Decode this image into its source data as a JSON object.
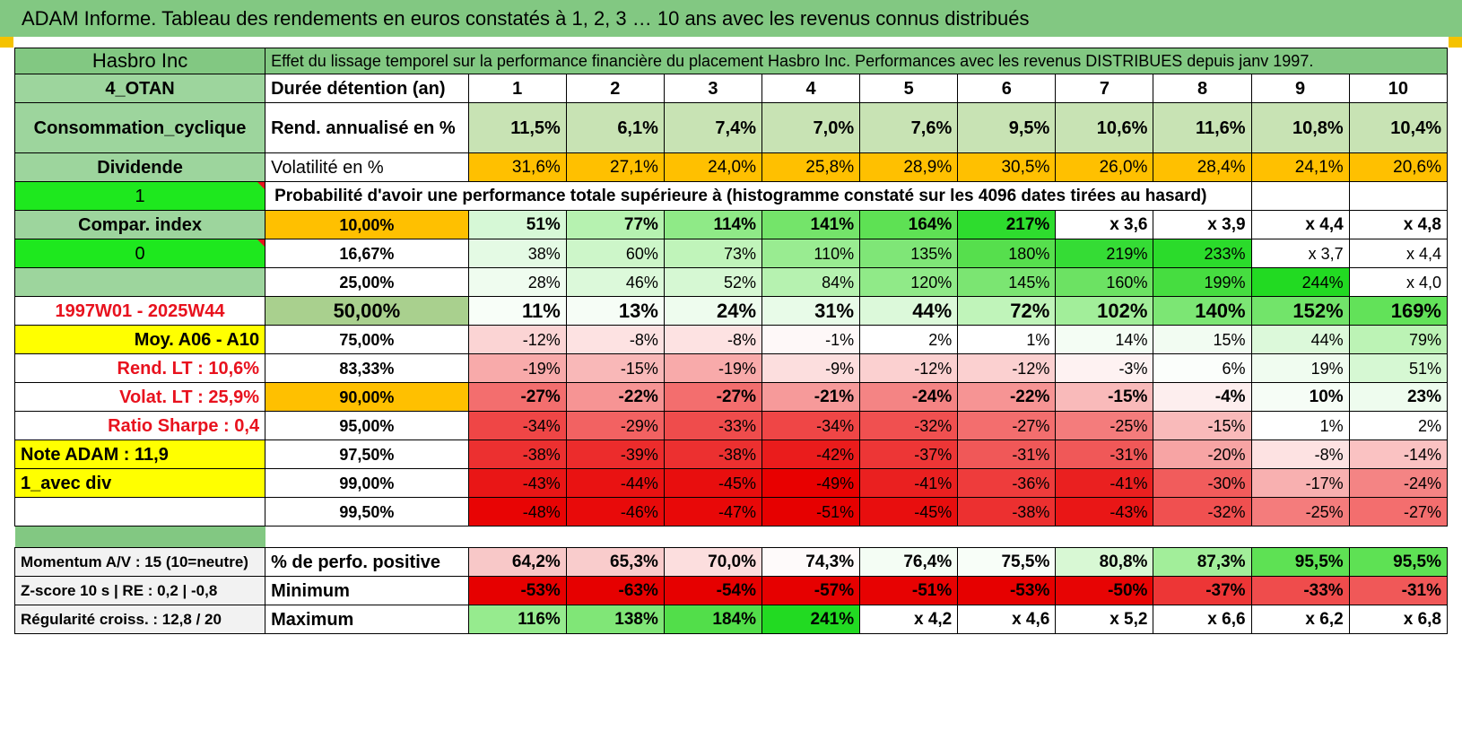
{
  "title": "ADAM Informe. Tableau des rendements en euros constatés à 1, 2, 3 … 10 ans avec les revenus connus distribués",
  "header": {
    "name": "Hasbro Inc",
    "description": "Effet du lissage temporel sur la performance financière du placement Hasbro Inc. Performances avec les revenus DISTRIBUES depuis janv 1997."
  },
  "rows": [
    {
      "side": {
        "text": "4_OTAN",
        "bg": "#9dd59d",
        "color": "#000",
        "align": "c",
        "bold": true
      },
      "label": {
        "text": "Durée détention (an)",
        "bg": "#ffffff",
        "align": "l",
        "bold": true
      },
      "cells": [
        {
          "v": "1",
          "bg": "#ffffff"
        },
        {
          "v": "2",
          "bg": "#ffffff"
        },
        {
          "v": "3",
          "bg": "#ffffff"
        },
        {
          "v": "4",
          "bg": "#ffffff"
        },
        {
          "v": "5",
          "bg": "#ffffff"
        },
        {
          "v": "6",
          "bg": "#ffffff"
        },
        {
          "v": "7",
          "bg": "#ffffff"
        },
        {
          "v": "8",
          "bg": "#ffffff"
        },
        {
          "v": "9",
          "bg": "#ffffff"
        },
        {
          "v": "10",
          "bg": "#ffffff"
        }
      ],
      "align": "c",
      "bold": true,
      "h": 32,
      "size": 20
    },
    {
      "side": {
        "text": "Consommation_cyclique",
        "bg": "#9dd59d",
        "color": "#000",
        "align": "c",
        "bold": true
      },
      "label": {
        "text": "Rend. annualisé en %",
        "bg": "#ffffff",
        "align": "l",
        "bold": true
      },
      "cells": [
        {
          "v": "11,5%",
          "bg": "#c8e3b4"
        },
        {
          "v": "6,1%",
          "bg": "#c8e3b4"
        },
        {
          "v": "7,4%",
          "bg": "#c8e3b4"
        },
        {
          "v": "7,0%",
          "bg": "#c8e3b4"
        },
        {
          "v": "7,6%",
          "bg": "#c8e3b4"
        },
        {
          "v": "9,5%",
          "bg": "#c8e3b4"
        },
        {
          "v": "10,6%",
          "bg": "#c8e3b4"
        },
        {
          "v": "11,6%",
          "bg": "#c8e3b4"
        },
        {
          "v": "10,8%",
          "bg": "#c8e3b4"
        },
        {
          "v": "10,4%",
          "bg": "#c8e3b4"
        }
      ],
      "align": "n",
      "bold": true,
      "h": 56,
      "size": 20
    },
    {
      "side": {
        "text": "Dividende",
        "bg": "#9dd59d",
        "color": "#000",
        "align": "c",
        "bold": true
      },
      "label": {
        "text": "Volatilité en %",
        "bg": "#ffffff",
        "align": "l",
        "bold": false
      },
      "cells": [
        {
          "v": "31,6%",
          "bg": "#ffc000"
        },
        {
          "v": "27,1%",
          "bg": "#ffc000"
        },
        {
          "v": "24,0%",
          "bg": "#ffc000"
        },
        {
          "v": "25,8%",
          "bg": "#ffc000"
        },
        {
          "v": "28,9%",
          "bg": "#ffc000"
        },
        {
          "v": "30,5%",
          "bg": "#ffc000"
        },
        {
          "v": "26,0%",
          "bg": "#ffc000"
        },
        {
          "v": "28,4%",
          "bg": "#ffc000"
        },
        {
          "v": "24,1%",
          "bg": "#ffc000"
        },
        {
          "v": "20,6%",
          "bg": "#ffc000"
        }
      ],
      "align": "n",
      "bold": false,
      "h": 32,
      "size": 19
    },
    {
      "type": "prob",
      "side": {
        "text": "1",
        "bg": "#1ee81e",
        "color": "#000",
        "align": "c",
        "bold": false,
        "tri": true
      },
      "text": "Probabilité d'avoir une performance totale supérieure à (histogramme constaté sur les 4096 dates tirées au hasard)",
      "h": 32
    },
    {
      "side": {
        "text": "Compar. index",
        "bg": "#9dd59d",
        "color": "#000",
        "align": "c",
        "bold": true
      },
      "label": {
        "text": "10,00%",
        "bg": "#ffc000",
        "align": "c",
        "bold": true
      },
      "cells": [
        {
          "v": "51%",
          "bg": "#d6f8d6"
        },
        {
          "v": "77%",
          "bg": "#b6f2b0"
        },
        {
          "v": "114%",
          "bg": "#8fea87"
        },
        {
          "v": "141%",
          "bg": "#74e46a"
        },
        {
          "v": "164%",
          "bg": "#5ee154"
        },
        {
          "v": "217%",
          "bg": "#2edc2e"
        },
        {
          "v": "x 3,6",
          "bg": "#ffffff"
        },
        {
          "v": "x 3,9",
          "bg": "#ffffff"
        },
        {
          "v": "x 4,4",
          "bg": "#ffffff"
        },
        {
          "v": "x 4,8",
          "bg": "#ffffff"
        }
      ],
      "align": "n",
      "bold": true,
      "h": 32,
      "size": 19
    },
    {
      "side": {
        "text": "0",
        "bg": "#1ee81e",
        "color": "#000",
        "align": "c",
        "bold": false,
        "tri": true
      },
      "label": {
        "text": "16,67%",
        "bg": "#ffffff",
        "align": "c",
        "bold": true
      },
      "cells": [
        {
          "v": "38%",
          "bg": "#e4fae4"
        },
        {
          "v": "60%",
          "bg": "#cdf6c9"
        },
        {
          "v": "73%",
          "bg": "#c0f4ba"
        },
        {
          "v": "110%",
          "bg": "#99ec91"
        },
        {
          "v": "135%",
          "bg": "#7fe677"
        },
        {
          "v": "180%",
          "bg": "#56df4d"
        },
        {
          "v": "219%",
          "bg": "#35dc35"
        },
        {
          "v": "233%",
          "bg": "#2bdb2b"
        },
        {
          "v": "x 3,7",
          "bg": "#ffffff"
        },
        {
          "v": "x 4,4",
          "bg": "#ffffff"
        }
      ],
      "align": "n",
      "bold": false,
      "h": 32,
      "size": 18
    },
    {
      "side": {
        "text": "",
        "bg": "#9dd59d",
        "color": "#000",
        "align": "c",
        "bold": false
      },
      "label": {
        "text": "25,00%",
        "bg": "#ffffff",
        "align": "c",
        "bold": true
      },
      "cells": [
        {
          "v": "28%",
          "bg": "#effcef"
        },
        {
          "v": "46%",
          "bg": "#dcf9da"
        },
        {
          "v": "52%",
          "bg": "#d6f8d3"
        },
        {
          "v": "84%",
          "bg": "#b6f2b0"
        },
        {
          "v": "120%",
          "bg": "#90ea88"
        },
        {
          "v": "145%",
          "bg": "#7be572"
        },
        {
          "v": "160%",
          "bg": "#6ce263"
        },
        {
          "v": "199%",
          "bg": "#46dd40"
        },
        {
          "v": "244%",
          "bg": "#22da22"
        },
        {
          "v": "x 4,0",
          "bg": "#ffffff"
        }
      ],
      "align": "n",
      "bold": false,
      "h": 32,
      "size": 18
    },
    {
      "side": {
        "text": "1997W01 - 2025W44",
        "bg": "#ffffff",
        "color": "#e8121e",
        "align": "c",
        "bold": true
      },
      "label": {
        "text": "50,00%",
        "bg": "#a9d08e",
        "align": "c",
        "bold": true,
        "big": true
      },
      "cells": [
        {
          "v": "11%",
          "bg": "#f8fef8"
        },
        {
          "v": "13%",
          "bg": "#f6fdf6"
        },
        {
          "v": "24%",
          "bg": "#eefcee"
        },
        {
          "v": "31%",
          "bg": "#e8fbe8"
        },
        {
          "v": "44%",
          "bg": "#dcf9da"
        },
        {
          "v": "72%",
          "bg": "#c0f4ba"
        },
        {
          "v": "102%",
          "bg": "#a2ee9a"
        },
        {
          "v": "140%",
          "bg": "#7ce674"
        },
        {
          "v": "152%",
          "bg": "#72e46a"
        },
        {
          "v": "169%",
          "bg": "#62e259"
        }
      ],
      "align": "n",
      "bold": true,
      "h": 32,
      "size": 22
    },
    {
      "side": {
        "text": "Moy. A06 - A10",
        "bg": "#ffff00",
        "color": "#000",
        "align": "n",
        "bold": true
      },
      "label": {
        "text": "75,00%",
        "bg": "#ffffff",
        "align": "c",
        "bold": true
      },
      "cells": [
        {
          "v": "-12%",
          "bg": "#fbd4d4"
        },
        {
          "v": "-8%",
          "bg": "#fde2e2"
        },
        {
          "v": "-8%",
          "bg": "#fde2e2"
        },
        {
          "v": "-1%",
          "bg": "#fef8f8"
        },
        {
          "v": "2%",
          "bg": "#ffffff"
        },
        {
          "v": "1%",
          "bg": "#ffffff"
        },
        {
          "v": "14%",
          "bg": "#f4fdf4"
        },
        {
          "v": "15%",
          "bg": "#f2fcf2"
        },
        {
          "v": "44%",
          "bg": "#dcf9da"
        },
        {
          "v": "79%",
          "bg": "#bcf3b5"
        }
      ],
      "align": "n",
      "bold": false,
      "h": 32,
      "size": 18
    },
    {
      "side": {
        "text": "Rend. LT :    10,6%",
        "bg": "#ffffff",
        "color": "#e8121e",
        "align": "n",
        "bold": true
      },
      "label": {
        "text": "83,33%",
        "bg": "#ffffff",
        "align": "c",
        "bold": true
      },
      "cells": [
        {
          "v": "-19%",
          "bg": "#f8aaaa"
        },
        {
          "v": "-15%",
          "bg": "#f9b8b8"
        },
        {
          "v": "-19%",
          "bg": "#f8aaaa"
        },
        {
          "v": "-9%",
          "bg": "#fcdede"
        },
        {
          "v": "-12%",
          "bg": "#fbd0d0"
        },
        {
          "v": "-12%",
          "bg": "#fbd0d0"
        },
        {
          "v": "-3%",
          "bg": "#fef2f2"
        },
        {
          "v": "6%",
          "bg": "#fbfefb"
        },
        {
          "v": "19%",
          "bg": "#f0fcf0"
        },
        {
          "v": "51%",
          "bg": "#d6f8d3"
        }
      ],
      "align": "n",
      "bold": false,
      "h": 32,
      "size": 18
    },
    {
      "side": {
        "text": "Volat. LT :    25,9%",
        "bg": "#ffffff",
        "color": "#e8121e",
        "align": "n",
        "bold": true
      },
      "label": {
        "text": "90,00%",
        "bg": "#ffc000",
        "align": "c",
        "bold": true
      },
      "cells": [
        {
          "v": "-27%",
          "bg": "#f36e6e"
        },
        {
          "v": "-22%",
          "bg": "#f69494"
        },
        {
          "v": "-27%",
          "bg": "#f36e6e"
        },
        {
          "v": "-21%",
          "bg": "#f69a9a"
        },
        {
          "v": "-24%",
          "bg": "#f48484"
        },
        {
          "v": "-22%",
          "bg": "#f69494"
        },
        {
          "v": "-15%",
          "bg": "#f9baba"
        },
        {
          "v": "-4%",
          "bg": "#fdeeee"
        },
        {
          "v": "10%",
          "bg": "#f6fdf6"
        },
        {
          "v": "23%",
          "bg": "#eefcee"
        }
      ],
      "align": "n",
      "bold": true,
      "h": 32,
      "size": 19
    },
    {
      "side": {
        "text": "Ratio Sharpe :    0,4",
        "bg": "#ffffff",
        "color": "#e8121e",
        "align": "n",
        "bold": true
      },
      "label": {
        "text": "95,00%",
        "bg": "#ffffff",
        "align": "c",
        "bold": true
      },
      "cells": [
        {
          "v": "-34%",
          "bg": "#ef4646"
        },
        {
          "v": "-29%",
          "bg": "#f26262"
        },
        {
          "v": "-33%",
          "bg": "#ef4c4c"
        },
        {
          "v": "-34%",
          "bg": "#ef4646"
        },
        {
          "v": "-32%",
          "bg": "#f05050"
        },
        {
          "v": "-27%",
          "bg": "#f36e6e"
        },
        {
          "v": "-25%",
          "bg": "#f47c7c"
        },
        {
          "v": "-15%",
          "bg": "#f9baba"
        },
        {
          "v": "1%",
          "bg": "#ffffff"
        },
        {
          "v": "2%",
          "bg": "#ffffff"
        }
      ],
      "align": "n",
      "bold": false,
      "h": 32,
      "size": 18
    },
    {
      "side": {
        "text": "Note ADAM : 11,9",
        "bg": "#ffff00",
        "color": "#000",
        "align": "l",
        "bold": true
      },
      "label": {
        "text": "97,50%",
        "bg": "#ffffff",
        "align": "c",
        "bold": true
      },
      "cells": [
        {
          "v": "-38%",
          "bg": "#ec3030"
        },
        {
          "v": "-39%",
          "bg": "#ec2c2c"
        },
        {
          "v": "-38%",
          "bg": "#ec3030"
        },
        {
          "v": "-42%",
          "bg": "#ea1c1c"
        },
        {
          "v": "-37%",
          "bg": "#ed3636"
        },
        {
          "v": "-31%",
          "bg": "#f05858"
        },
        {
          "v": "-31%",
          "bg": "#f05858"
        },
        {
          "v": "-20%",
          "bg": "#f7a4a4"
        },
        {
          "v": "-8%",
          "bg": "#fde2e2"
        },
        {
          "v": "-14%",
          "bg": "#fac2c2"
        }
      ],
      "align": "n",
      "bold": false,
      "h": 32,
      "size": 18
    },
    {
      "side": {
        "text": "1_avec div",
        "bg": "#ffff00",
        "color": "#000",
        "align": "l",
        "bold": true
      },
      "label": {
        "text": "99,00%",
        "bg": "#ffffff",
        "align": "c",
        "bold": true
      },
      "cells": [
        {
          "v": "-43%",
          "bg": "#e91616"
        },
        {
          "v": "-44%",
          "bg": "#e91212"
        },
        {
          "v": "-45%",
          "bg": "#e80e0e"
        },
        {
          "v": "-49%",
          "bg": "#e80000"
        },
        {
          "v": "-41%",
          "bg": "#ea2020"
        },
        {
          "v": "-36%",
          "bg": "#ee3c3c"
        },
        {
          "v": "-41%",
          "bg": "#ea2020"
        },
        {
          "v": "-30%",
          "bg": "#f15c5c"
        },
        {
          "v": "-17%",
          "bg": "#f8b0b0"
        },
        {
          "v": "-24%",
          "bg": "#f48484"
        }
      ],
      "align": "n",
      "bold": false,
      "h": 32,
      "size": 18
    },
    {
      "side": {
        "text": "",
        "bg": "#ffffff",
        "color": "#000",
        "align": "c",
        "bold": false
      },
      "label": {
        "text": "99,50%",
        "bg": "#ffffff",
        "align": "c",
        "bold": true
      },
      "cells": [
        {
          "v": "-48%",
          "bg": "#e80404"
        },
        {
          "v": "-46%",
          "bg": "#e80a0a"
        },
        {
          "v": "-47%",
          "bg": "#e80808"
        },
        {
          "v": "-51%",
          "bg": "#e60000"
        },
        {
          "v": "-45%",
          "bg": "#e80e0e"
        },
        {
          "v": "-38%",
          "bg": "#ec3030"
        },
        {
          "v": "-43%",
          "bg": "#e91616"
        },
        {
          "v": "-32%",
          "bg": "#f05050"
        },
        {
          "v": "-25%",
          "bg": "#f47c7c"
        },
        {
          "v": "-27%",
          "bg": "#f36e6e"
        }
      ],
      "align": "n",
      "bold": false,
      "h": 32,
      "size": 18
    },
    {
      "type": "spacer",
      "side_bg": "#82c882"
    },
    {
      "side": {
        "text": "Momentum A/V : 15 (10=neutre)",
        "bg": "#f2f2f2",
        "color": "#000",
        "align": "l",
        "bold": true,
        "small": true
      },
      "label": {
        "text": "% de perfo. positive",
        "bg": "#ffffff",
        "align": "l",
        "bold": true
      },
      "cells": [
        {
          "v": "64,2%",
          "bg": "#f8c8c8"
        },
        {
          "v": "65,3%",
          "bg": "#f9cccc"
        },
        {
          "v": "70,0%",
          "bg": "#fcdede"
        },
        {
          "v": "74,3%",
          "bg": "#fefafa"
        },
        {
          "v": "76,4%",
          "bg": "#f4fdf4"
        },
        {
          "v": "75,5%",
          "bg": "#f8fef8"
        },
        {
          "v": "80,8%",
          "bg": "#d8f8d4"
        },
        {
          "v": "87,3%",
          "bg": "#a2ee9a"
        },
        {
          "v": "95,5%",
          "bg": "#5ee154"
        },
        {
          "v": "95,5%",
          "bg": "#5ee154"
        }
      ],
      "align": "n",
      "bold": true,
      "h": 32,
      "size": 19
    },
    {
      "side": {
        "text": "Z-score 10 s | RE : 0,2 | -0,8",
        "bg": "#f2f2f2",
        "color": "#000",
        "align": "l",
        "bold": true,
        "small": true
      },
      "label": {
        "text": "Minimum",
        "bg": "#ffffff",
        "align": "l",
        "bold": true
      },
      "cells": [
        {
          "v": "-53%",
          "bg": "#e60000"
        },
        {
          "v": "-63%",
          "bg": "#e60000"
        },
        {
          "v": "-54%",
          "bg": "#e60000"
        },
        {
          "v": "-57%",
          "bg": "#e60000"
        },
        {
          "v": "-51%",
          "bg": "#e70202"
        },
        {
          "v": "-53%",
          "bg": "#e60000"
        },
        {
          "v": "-50%",
          "bg": "#e70404"
        },
        {
          "v": "-37%",
          "bg": "#ed3636"
        },
        {
          "v": "-33%",
          "bg": "#ef4c4c"
        },
        {
          "v": "-31%",
          "bg": "#f05858"
        }
      ],
      "align": "n",
      "bold": true,
      "h": 32,
      "size": 19
    },
    {
      "side": {
        "text": "Régularité croiss. : 12,8 / 20",
        "bg": "#f2f2f2",
        "color": "#000",
        "align": "l",
        "bold": true,
        "small": true
      },
      "label": {
        "text": "Maximum",
        "bg": "#ffffff",
        "align": "l",
        "bold": true
      },
      "cells": [
        {
          "v": "116%",
          "bg": "#96eb8e"
        },
        {
          "v": "138%",
          "bg": "#80e677"
        },
        {
          "v": "184%",
          "bg": "#52de4a"
        },
        {
          "v": "241%",
          "bg": "#22da22"
        },
        {
          "v": "x 4,2",
          "bg": "#ffffff"
        },
        {
          "v": "x 4,6",
          "bg": "#ffffff"
        },
        {
          "v": "x 5,2",
          "bg": "#ffffff"
        },
        {
          "v": "x 6,6",
          "bg": "#ffffff"
        },
        {
          "v": "x 6,2",
          "bg": "#ffffff"
        },
        {
          "v": "x 6,8",
          "bg": "#ffffff"
        }
      ],
      "align": "n",
      "bold": true,
      "h": 32,
      "size": 19
    }
  ]
}
